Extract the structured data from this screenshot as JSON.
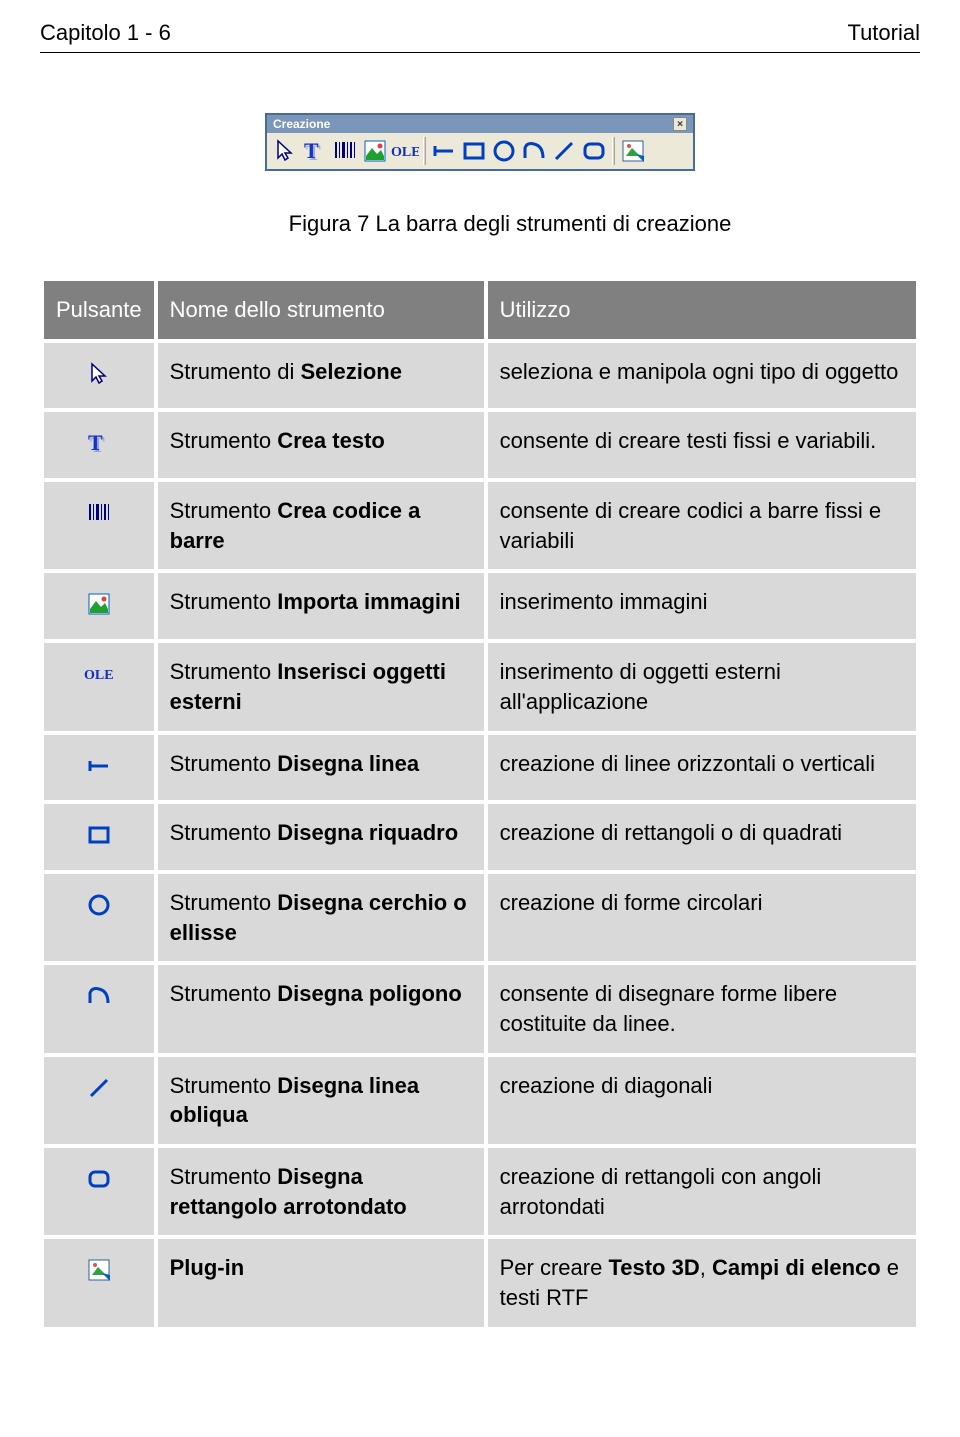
{
  "header": {
    "left": "Capitolo 1 - 6",
    "right": "Tutorial"
  },
  "toolbar": {
    "title": "Creazione"
  },
  "caption": "Figura 7 La barra degli strumenti di creazione",
  "table": {
    "headers": {
      "button": "Pulsante",
      "name": "Nome dello strumento",
      "usage": "Utilizzo"
    },
    "rows": [
      {
        "icon": "cursor",
        "name_prefix": "Strumento di ",
        "name_bold": "Selezione",
        "name_suffix": "",
        "usage": "seleziona e manipola ogni tipo di oggetto"
      },
      {
        "icon": "text",
        "name_prefix": "Strumento ",
        "name_bold": "Crea testo",
        "name_suffix": "",
        "usage": "consente di creare testi fissi e variabili."
      },
      {
        "icon": "barcode",
        "name_prefix": "Strumento ",
        "name_bold": "Crea codice a barre",
        "name_suffix": "",
        "usage": "consente di creare codici a barre fissi e variabili"
      },
      {
        "icon": "image",
        "name_prefix": "Strumento ",
        "name_bold": "Importa immagini",
        "name_suffix": "",
        "usage": "inserimento immagini"
      },
      {
        "icon": "ole",
        "name_prefix": "Strumento ",
        "name_bold": "Inserisci oggetti esterni",
        "name_suffix": "",
        "usage": "inserimento di oggetti esterni all'applicazione"
      },
      {
        "icon": "hline",
        "name_prefix": "Strumento  ",
        "name_bold": "Disegna linea",
        "name_suffix": "",
        "usage": "creazione di linee orizzontali o verticali"
      },
      {
        "icon": "rect",
        "name_prefix": "Strumento ",
        "name_bold": "Disegna riquadro",
        "name_suffix": "",
        "usage": "creazione di rettangoli o di quadrati"
      },
      {
        "icon": "circle",
        "name_prefix": "Strumento ",
        "name_bold": "Disegna cerchio o ellisse",
        "name_suffix": "",
        "usage": "creazione di forme circolari"
      },
      {
        "icon": "polygon",
        "name_prefix": "Strumento ",
        "name_bold": "Disegna poligono",
        "name_suffix": "",
        "usage": "consente di disegnare forme libere costituite da linee."
      },
      {
        "icon": "diagonal",
        "name_prefix": "Strumento ",
        "name_bold": "Disegna linea obliqua",
        "name_suffix": "",
        "usage": "creazione di diagonali"
      },
      {
        "icon": "roundrect",
        "name_prefix": "Strumento ",
        "name_bold": "Disegna rettangolo arrotondato",
        "name_suffix": "",
        "usage": "creazione di rettangoli con angoli arrotondati"
      },
      {
        "icon": "plugin",
        "name_prefix": "",
        "name_bold": "Plug-in",
        "name_suffix": "",
        "usage_html": true,
        "usage_pre": "Per creare ",
        "usage_bold1": "Testo 3D",
        "usage_mid": ", ",
        "usage_bold2": "Campi di elenco",
        "usage_post": " e testi RTF"
      }
    ]
  },
  "icons": {
    "cursor": "<svg width='26' height='26'><polygon points='6,3 6,20 10,16 13,22 16,20 13,15 19,15' fill='#fff' stroke='#000080' stroke-width='1.5'/></svg>",
    "text": "<svg width='26' height='26'><text x='2' y='20' font-family='Georgia,serif' font-size='22' font-weight='bold' fill='#1030c0'>T</text><text x='4' y='22' font-family='Georgia,serif' font-size='22' font-weight='bold' fill='#3050e0' opacity='0.4'>T</text></svg>",
    "barcode": "<svg width='26' height='26'><rect x='3' y='4' width='2' height='16' fill='#000080'/><rect x='7' y='4' width='1' height='16' fill='#000080'/><rect x='10' y='4' width='3' height='16' fill='#000080'/><rect x='15' y='4' width='1' height='16' fill='#000080'/><rect x='18' y='4' width='2' height='16' fill='#000080'/><rect x='22' y='4' width='1' height='16' fill='#000080'/></svg>",
    "image": "<svg width='26' height='26'><rect x='3' y='3' width='20' height='20' fill='#fff' stroke='#0060c0'/><polygon points='4,18 10,10 15,16 19,12 22,18 22,22 4,22' fill='#20a030'/><circle cx='18' cy='8' r='2.5' fill='#e04040'/></svg>",
    "ole": "<svg width='30' height='20'><text x='0' y='15' font-family='Georgia,serif' font-size='14' font-weight='bold' fill='#1030c0'>OLE</text></svg>",
    "hline": "<svg width='26' height='26'><line x1='4' y1='13' x2='22' y2='13' stroke='#0040c0' stroke-width='3'/><line x1='4' y1='8' x2='4' y2='18' stroke='#0040c0' stroke-width='3'/></svg>",
    "rect": "<svg width='26' height='26'><rect x='4' y='6' width='18' height='14' fill='none' stroke='#0040c0' stroke-width='3'/></svg>",
    "circle": "<svg width='26' height='26'><circle cx='13' cy='13' r='9' fill='none' stroke='#0040c0' stroke-width='3'/></svg>",
    "polygon": "<svg width='26' height='26'><path d='M4,20 L4,10 Q6,4 13,6 Q22,8 22,20' fill='none' stroke='#0040c0' stroke-width='3'/></svg>",
    "diagonal": "<svg width='26' height='26'><line x1='5' y1='21' x2='21' y2='5' stroke='#0040c0' stroke-width='3'/></svg>",
    "roundrect": "<svg width='26' height='26'><rect x='4' y='6' width='18' height='14' rx='5' ry='5' fill='none' stroke='#0040c0' stroke-width='3'/></svg>",
    "plugin": "<svg width='26' height='26'><rect x='3' y='3' width='20' height='20' fill='#fff' stroke='#3060a0'/><polygon points='6,18 12,10 16,14 20,18' fill='#30a040'/><circle cx='9' cy='8' r='2' fill='#e05050'/><polygon points='16,16 24,24 24,18' fill='#0060c0'/></svg>"
  }
}
